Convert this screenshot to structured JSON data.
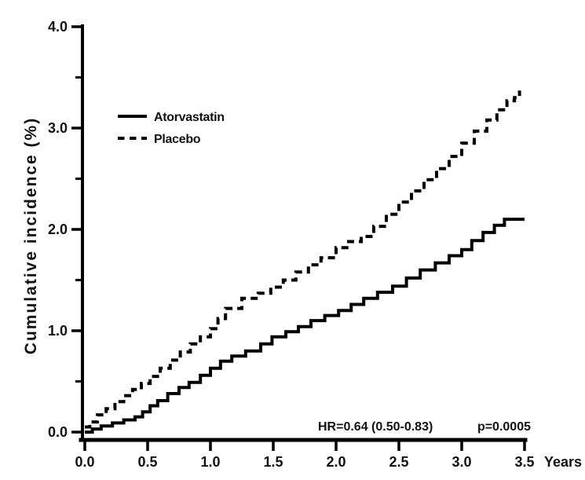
{
  "figure": {
    "background": "#ffffff",
    "ink_color": "#000000"
  },
  "chart_data": {
    "type": "line",
    "subtype": "step-cumulative-incidence",
    "title": "",
    "xlabel": "Years",
    "ylabel": "Cumulative incidence (%)",
    "xlim": [
      0,
      3.5
    ],
    "ylim": [
      0,
      4.0
    ],
    "grid": false,
    "x_ticks": [
      0.0,
      0.5,
      1.0,
      1.5,
      2.0,
      2.5,
      3.0,
      3.5
    ],
    "x_tick_labels": [
      "0.0",
      "0.5",
      "1.0",
      "1.5",
      "2.0",
      "2.5",
      "3.0",
      "3.5"
    ],
    "y_ticks": [
      0.0,
      1.0,
      2.0,
      3.0,
      4.0
    ],
    "y_tick_labels": [
      "0.0",
      "1.0",
      "2.0",
      "3.0",
      "4.0"
    ],
    "y_minor_ticks": [
      0.5,
      1.5,
      2.5,
      3.5
    ],
    "legend_position": "upper-left-inside",
    "annotation": {
      "hr_text": "HR=0.64 (0.50-0.83)",
      "p_text": "p=0.0005"
    },
    "series": [
      {
        "name": "Atorvastatin",
        "style": "solid",
        "color": "#000000",
        "x": [
          0.0,
          0.06,
          0.13,
          0.22,
          0.31,
          0.4,
          0.46,
          0.52,
          0.58,
          0.66,
          0.75,
          0.83,
          0.92,
          1.0,
          1.08,
          1.17,
          1.28,
          1.4,
          1.49,
          1.6,
          1.7,
          1.8,
          1.91,
          2.02,
          2.12,
          2.22,
          2.33,
          2.45,
          2.56,
          2.67,
          2.79,
          2.9,
          3.0,
          3.08,
          3.17,
          3.26,
          3.34,
          3.5
        ],
        "y": [
          0.0,
          0.03,
          0.06,
          0.09,
          0.12,
          0.15,
          0.2,
          0.26,
          0.31,
          0.38,
          0.44,
          0.49,
          0.56,
          0.63,
          0.7,
          0.75,
          0.8,
          0.87,
          0.94,
          0.99,
          1.04,
          1.1,
          1.15,
          1.2,
          1.26,
          1.32,
          1.38,
          1.44,
          1.52,
          1.6,
          1.67,
          1.74,
          1.8,
          1.89,
          1.97,
          2.04,
          2.1,
          2.1
        ]
      },
      {
        "name": "Placebo",
        "style": "dashed",
        "color": "#000000",
        "x": [
          0.0,
          0.04,
          0.1,
          0.17,
          0.24,
          0.31,
          0.38,
          0.45,
          0.52,
          0.6,
          0.68,
          0.76,
          0.84,
          0.92,
          1.0,
          1.06,
          1.12,
          1.25,
          1.38,
          1.48,
          1.58,
          1.68,
          1.78,
          1.88,
          2.0,
          2.1,
          2.2,
          2.3,
          2.4,
          2.5,
          2.6,
          2.7,
          2.8,
          2.9,
          3.0,
          3.1,
          3.2,
          3.28,
          3.36,
          3.42,
          3.46
        ],
        "y": [
          0.05,
          0.1,
          0.17,
          0.23,
          0.3,
          0.36,
          0.42,
          0.48,
          0.55,
          0.63,
          0.71,
          0.79,
          0.87,
          0.94,
          1.02,
          1.12,
          1.22,
          1.32,
          1.37,
          1.43,
          1.5,
          1.58,
          1.65,
          1.72,
          1.82,
          1.88,
          1.93,
          2.03,
          2.15,
          2.27,
          2.38,
          2.49,
          2.6,
          2.72,
          2.85,
          2.97,
          3.08,
          3.18,
          3.27,
          3.3,
          3.37
        ]
      }
    ]
  }
}
